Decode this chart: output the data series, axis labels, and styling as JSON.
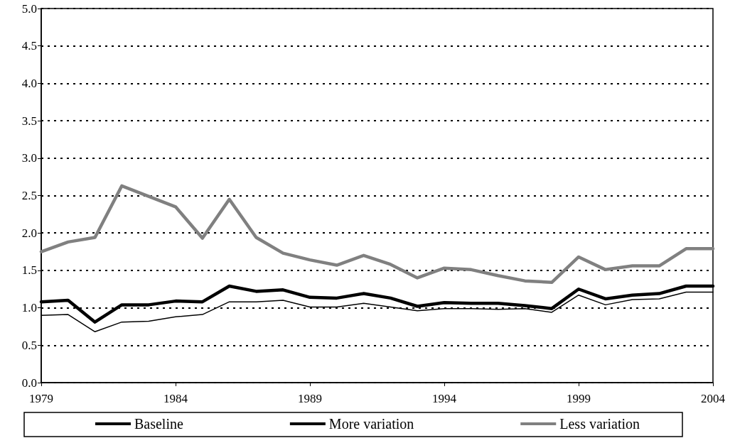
{
  "chart_data": {
    "type": "line",
    "x": [
      1979,
      1980,
      1981,
      1982,
      1983,
      1984,
      1985,
      1986,
      1987,
      1988,
      1989,
      1990,
      1991,
      1992,
      1993,
      1994,
      1995,
      1996,
      1997,
      1998,
      1999,
      2000,
      2001,
      2002,
      2003,
      2004
    ],
    "series": [
      {
        "name": "Baseline",
        "color": "#000000",
        "values": [
          1.08,
          1.1,
          0.81,
          1.04,
          1.04,
          1.09,
          1.08,
          1.29,
          1.22,
          1.24,
          1.14,
          1.13,
          1.19,
          1.13,
          1.02,
          1.07,
          1.06,
          1.06,
          1.03,
          0.99,
          1.25,
          1.12,
          1.17,
          1.19,
          1.29,
          1.29
        ]
      },
      {
        "name": "More variation",
        "color": "#000000",
        "values": [
          0.9,
          0.91,
          0.68,
          0.81,
          0.82,
          0.88,
          0.91,
          1.08,
          1.08,
          1.1,
          1.01,
          1.01,
          1.06,
          1.01,
          0.96,
          0.99,
          0.99,
          0.98,
          0.99,
          0.94,
          1.17,
          1.04,
          1.11,
          1.12,
          1.21,
          1.21
        ]
      },
      {
        "name": "Less variation",
        "color": "#808080",
        "values": [
          1.75,
          1.88,
          1.94,
          2.63,
          2.49,
          2.35,
          1.93,
          2.45,
          1.94,
          1.73,
          1.64,
          1.57,
          1.7,
          1.58,
          1.4,
          1.53,
          1.51,
          1.43,
          1.36,
          1.34,
          1.68,
          1.51,
          1.56,
          1.56,
          1.79,
          1.79
        ]
      }
    ],
    "xlim": [
      1979,
      2004
    ],
    "xticks": [
      1979,
      1984,
      1989,
      1994,
      1999,
      2004
    ],
    "ylim": [
      0,
      5
    ],
    "yticks": [
      {
        "value": 0,
        "label": "0.0"
      },
      {
        "value": 0.5,
        "label": "0.5"
      },
      {
        "value": 1,
        "label": "1.0"
      },
      {
        "value": 1.5,
        "label": "1.5"
      },
      {
        "value": 2,
        "label": "2.0"
      },
      {
        "value": 2.5,
        "label": "2.5"
      },
      {
        "value": 3,
        "label": "3.0"
      },
      {
        "value": 3.5,
        "label": "3.5"
      },
      {
        "value": 4,
        "label": "4.0"
      },
      {
        "value": 4.5,
        "label": "4.5"
      },
      {
        "value": 5,
        "label": "5.0"
      }
    ],
    "grid": "y",
    "legend": "bottom",
    "marker": "none",
    "line_style": "solid"
  }
}
